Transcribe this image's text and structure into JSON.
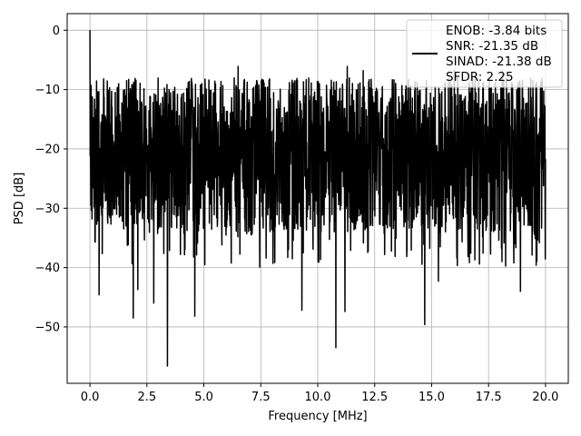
{
  "chart_data": {
    "type": "line",
    "title": "",
    "xlabel": "Frequency [MHz]",
    "ylabel": "PSD [dB]",
    "xlim": [
      -1.0,
      21.0
    ],
    "ylim": [
      -59.5,
      2.8
    ],
    "xticks": [
      0.0,
      2.5,
      5.0,
      7.5,
      10.0,
      12.5,
      15.0,
      17.5,
      20.0
    ],
    "xtick_labels": [
      "0.0",
      "2.5",
      "5.0",
      "7.5",
      "10.0",
      "12.5",
      "15.0",
      "17.5",
      "20.0"
    ],
    "yticks": [
      0,
      -10,
      -20,
      -30,
      -40,
      -50
    ],
    "ytick_labels": [
      "0",
      "−10",
      "−20",
      "−30",
      "−40",
      "−50"
    ],
    "grid": true,
    "legend_position": "top-right",
    "legend_lines": [
      "ENOB: -3.84 bits",
      "SNR: -21.35 dB",
      "SINAD: -21.38 dB",
      "SFDR: 2.25"
    ],
    "series": [
      {
        "color": "#000000",
        "x_start": 0.0,
        "x_end": 20.0,
        "point_count": 2000,
        "fundamental": {
          "x": 0.0,
          "y": 0.0
        },
        "noise_floor_median_db": -20,
        "noise_band_db": [
          -34,
          -8
        ],
        "notable_peaks": [
          {
            "x": 0.05,
            "y": -9.3
          },
          {
            "x": 6.5,
            "y": -6.1
          },
          {
            "x": 11.3,
            "y": -6.1
          },
          {
            "x": 12.0,
            "y": -6.8
          },
          {
            "x": 16.0,
            "y": -6.8
          },
          {
            "x": 18.1,
            "y": -6.8
          }
        ],
        "notable_dips": [
          {
            "x": 0.4,
            "y": -44.6
          },
          {
            "x": 1.9,
            "y": -48.5
          },
          {
            "x": 2.1,
            "y": -43.7
          },
          {
            "x": 2.8,
            "y": -46.0
          },
          {
            "x": 3.4,
            "y": -56.6
          },
          {
            "x": 4.6,
            "y": -48.2
          },
          {
            "x": 9.3,
            "y": -47.2
          },
          {
            "x": 10.8,
            "y": -53.5
          },
          {
            "x": 11.2,
            "y": -47.4
          },
          {
            "x": 14.7,
            "y": -49.6
          },
          {
            "x": 15.3,
            "y": -42.3
          },
          {
            "x": 16.9,
            "y": -38.7
          },
          {
            "x": 18.9,
            "y": -44.0
          }
        ]
      }
    ]
  }
}
